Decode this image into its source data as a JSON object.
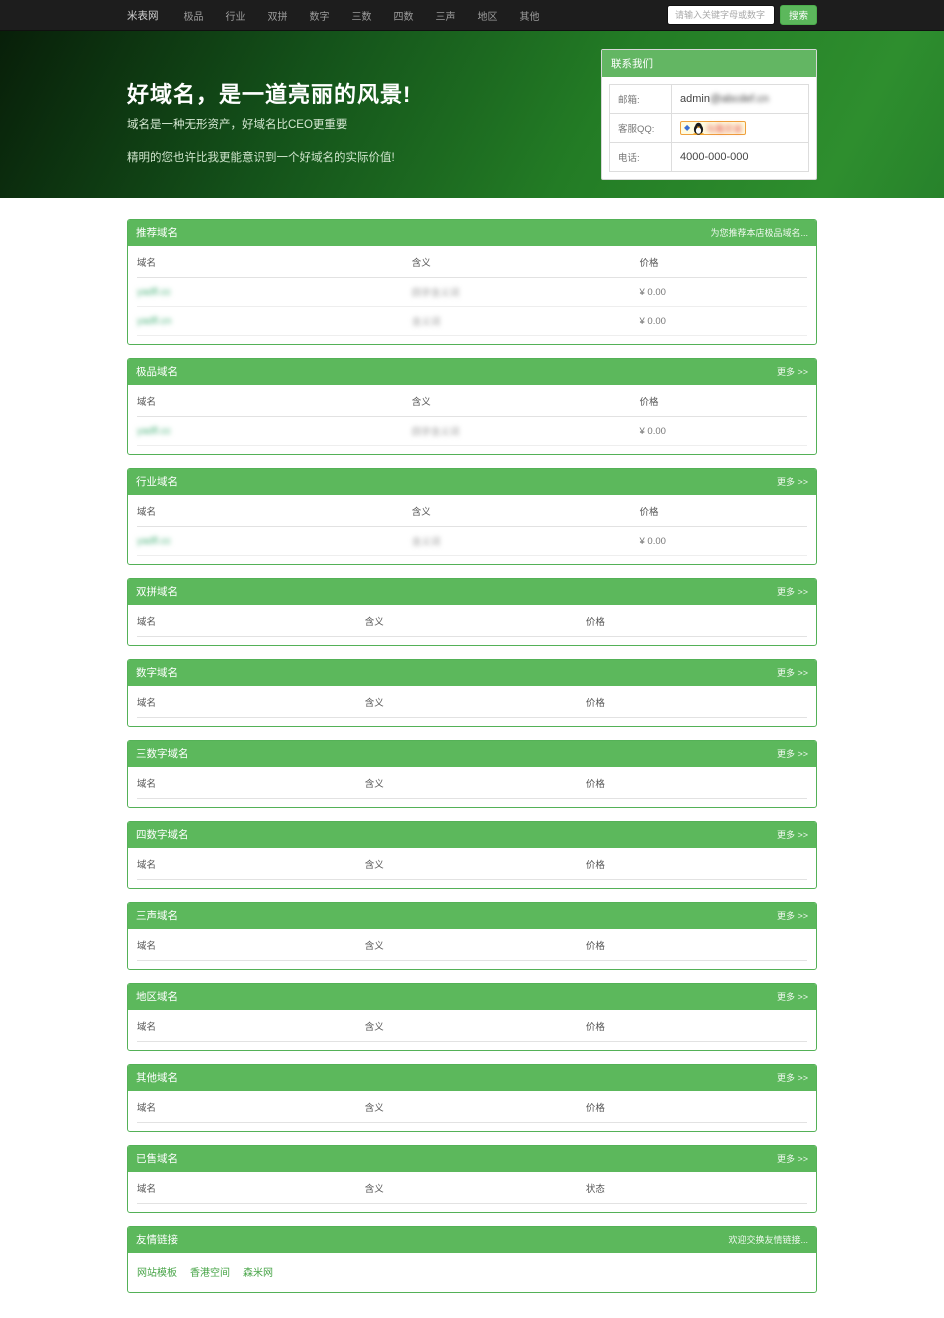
{
  "navbar": {
    "brand": "米表网",
    "items": [
      "极品",
      "行业",
      "双拼",
      "数字",
      "三数",
      "四数",
      "三声",
      "地区",
      "其他"
    ],
    "search_placeholder": "请输入关键字母或数字",
    "search_button": "搜索"
  },
  "hero": {
    "title": "好域名，是一道亮丽的风景!",
    "subtitle": "域名是一种无形资产，好域名比CEO更重要",
    "tagline": "精明的您也许比我更能意识到一个好域名的实际价值!"
  },
  "contact": {
    "header": "联系我们",
    "email_label": "邮箱:",
    "email_value": "admin",
    "email_redacted_blurred": "@abcdef.cn",
    "qq_label": "客服QQ:",
    "qq_badge_text_blurred": "与我交谈",
    "phone_label": "电话:",
    "phone_value": "4000-000-000"
  },
  "sections": [
    {
      "title": "推荐域名",
      "more": "为您推荐本店极品域名...",
      "columns": [
        "域名",
        "含义",
        "价格"
      ],
      "rows": [
        {
          "domain_blurred": "yadfl.cc",
          "meaning_blurred": "四字含义词",
          "price": "¥ 0.00"
        },
        {
          "domain_blurred": "yadfl.cn",
          "meaning_blurred": "含义词",
          "price": "¥ 0.00"
        }
      ]
    },
    {
      "title": "极品域名",
      "more": "更多 >>",
      "columns": [
        "域名",
        "含义",
        "价格"
      ],
      "rows": [
        {
          "domain_blurred": "yadfl.cc",
          "meaning_blurred": "四字含义词",
          "price": "¥ 0.00"
        }
      ]
    },
    {
      "title": "行业域名",
      "more": "更多 >>",
      "columns": [
        "域名",
        "含义",
        "价格"
      ],
      "rows": [
        {
          "domain_blurred": "yadfl.cc",
          "meaning_blurred": "含义词",
          "price": "¥ 0.00"
        }
      ]
    },
    {
      "title": "双拼域名",
      "more": "更多 >>",
      "columns": [
        "域名",
        "含义",
        "价格"
      ],
      "rows": []
    },
    {
      "title": "数字域名",
      "more": "更多 >>",
      "columns": [
        "域名",
        "含义",
        "价格"
      ],
      "rows": []
    },
    {
      "title": "三数字域名",
      "more": "更多 >>",
      "columns": [
        "域名",
        "含义",
        "价格"
      ],
      "rows": []
    },
    {
      "title": "四数字域名",
      "more": "更多 >>",
      "columns": [
        "域名",
        "含义",
        "价格"
      ],
      "rows": []
    },
    {
      "title": "三声域名",
      "more": "更多 >>",
      "columns": [
        "域名",
        "含义",
        "价格"
      ],
      "rows": []
    },
    {
      "title": "地区域名",
      "more": "更多 >>",
      "columns": [
        "域名",
        "含义",
        "价格"
      ],
      "rows": []
    },
    {
      "title": "其他域名",
      "more": "更多 >>",
      "columns": [
        "域名",
        "含义",
        "价格"
      ],
      "rows": []
    },
    {
      "title": "已售域名",
      "more": "更多 >>",
      "columns": [
        "域名",
        "含义",
        "状态"
      ],
      "rows": []
    }
  ],
  "links_panel": {
    "title": "友情链接",
    "more": "欢迎交换友情链接...",
    "links": [
      "网站模板",
      "香港空间",
      "森米网"
    ]
  }
}
